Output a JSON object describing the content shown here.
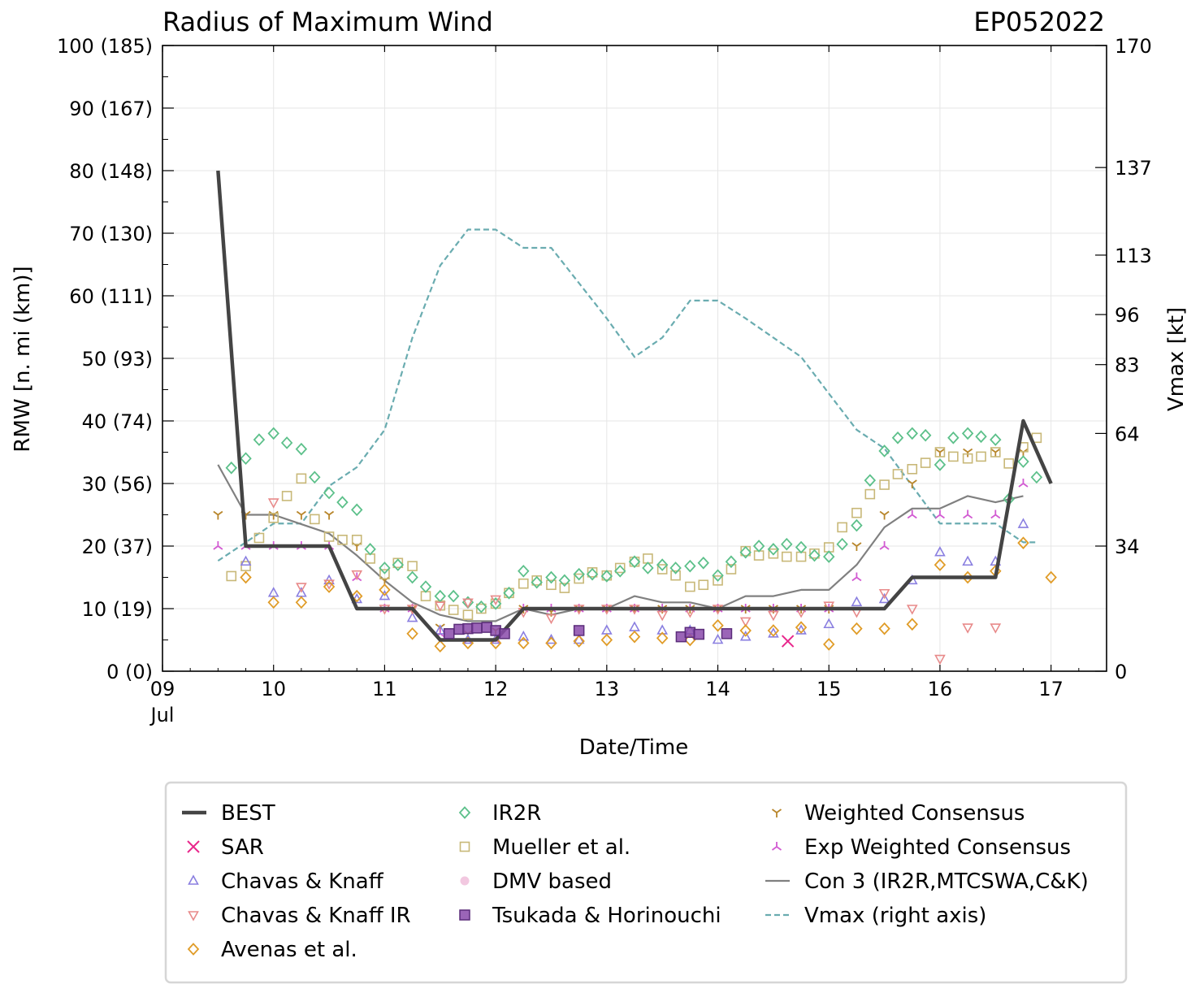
{
  "chart_data": {
    "type": "line",
    "title": "Radius of Maximum Wind",
    "storm_id": "EP052022",
    "xlabel": "Date/Time",
    "ylabel": "RMW [n. mi (km)]",
    "y2label": "Vmax [kt]",
    "xlim": [
      9,
      17.5
    ],
    "ylim": [
      0,
      100
    ],
    "x_ticks": [
      {
        "value": 9,
        "label": "09",
        "sublabel": "Jul"
      },
      {
        "value": 10,
        "label": "10"
      },
      {
        "value": 11,
        "label": "11"
      },
      {
        "value": 12,
        "label": "12"
      },
      {
        "value": 13,
        "label": "13"
      },
      {
        "value": 14,
        "label": "14"
      },
      {
        "value": 15,
        "label": "15"
      },
      {
        "value": 16,
        "label": "16"
      },
      {
        "value": 17,
        "label": "17"
      }
    ],
    "y_ticks": [
      {
        "value": 0,
        "label": "0 (0)"
      },
      {
        "value": 10,
        "label": "10 (19)"
      },
      {
        "value": 20,
        "label": "20 (37)"
      },
      {
        "value": 30,
        "label": "30 (56)"
      },
      {
        "value": 40,
        "label": "40 (74)"
      },
      {
        "value": 50,
        "label": "50 (93)"
      },
      {
        "value": 60,
        "label": "60 (111)"
      },
      {
        "value": 70,
        "label": "70 (130)"
      },
      {
        "value": 80,
        "label": "80 (148)"
      },
      {
        "value": 90,
        "label": "90 (167)"
      },
      {
        "value": 100,
        "label": "100 (185)"
      }
    ],
    "y2_ticks": [
      {
        "value": 0,
        "label": "0"
      },
      {
        "value": 34,
        "label": "34"
      },
      {
        "value": 64,
        "label": "64"
      },
      {
        "value": 83,
        "label": "83"
      },
      {
        "value": 96,
        "label": "96"
      },
      {
        "value": 113,
        "label": "113"
      },
      {
        "value": 137,
        "label": "137"
      },
      {
        "value": 170,
        "label": "170"
      }
    ],
    "y2_mapping": [
      [
        0,
        0
      ],
      [
        34,
        20
      ],
      [
        64,
        38
      ],
      [
        83,
        49
      ],
      [
        96,
        57
      ],
      [
        113,
        66.5
      ],
      [
        137,
        80.5
      ],
      [
        170,
        100
      ]
    ],
    "series": [
      {
        "name": "BEST",
        "type": "line",
        "color": "#444444",
        "x": [
          9.5,
          9.75,
          10.5,
          10.75,
          11.25,
          11.5,
          12.0,
          12.25,
          15.5,
          15.75,
          16.5,
          16.75,
          17.0
        ],
        "y": [
          80,
          20,
          20,
          10,
          10,
          5,
          5,
          10,
          10,
          15,
          15,
          40,
          30
        ]
      },
      {
        "name": "SAR",
        "type": "marker",
        "marker": "x",
        "color": "#e8278c",
        "x": [
          14.63
        ],
        "y": [
          4.8
        ]
      },
      {
        "name": "Chavas & Knaff",
        "type": "marker",
        "marker": "triangle-up",
        "color": "#8a7fe0",
        "x": [
          9.75,
          10.0,
          10.25,
          10.5,
          10.75,
          11.0,
          11.25,
          11.5,
          11.75,
          12.0,
          12.25,
          12.5,
          12.75,
          13.0,
          13.25,
          13.5,
          13.75,
          14.0,
          14.25,
          14.5,
          14.75,
          15.0,
          15.25,
          15.5,
          15.75,
          16.0,
          16.25,
          16.5,
          16.75
        ],
        "y": [
          17.5,
          12.5,
          12.5,
          14.5,
          11.5,
          12,
          8.5,
          6.5,
          5,
          5,
          5.5,
          5,
          5,
          6.5,
          7,
          6.5,
          6.5,
          5,
          5.5,
          6,
          6.5,
          7.5,
          11,
          11.5,
          14.5,
          19,
          17.5,
          17.5,
          23.5
        ]
      },
      {
        "name": "Chavas & Knaff IR",
        "type": "marker",
        "marker": "triangle-down",
        "color": "#e88a8a",
        "x": [
          10.0,
          10.25,
          10.5,
          10.75,
          11.0,
          11.25,
          11.5,
          11.75,
          12.0,
          12.25,
          12.5,
          12.75,
          13.0,
          13.25,
          13.5,
          13.75,
          14.0,
          14.25,
          14.5,
          14.75,
          15.0,
          15.25,
          15.5,
          15.75,
          16.0,
          16.25,
          16.5
        ],
        "y": [
          27,
          13.5,
          14,
          15.5,
          10,
          10,
          10.5,
          11,
          11.5,
          9.5,
          8.5,
          10,
          10,
          10,
          9,
          9.5,
          10,
          8,
          9,
          9.5,
          10.5,
          9.5,
          12.5,
          10,
          2,
          7,
          7
        ]
      },
      {
        "name": "Avenas et al.",
        "type": "marker",
        "marker": "diamond",
        "color": "#e09c28",
        "x": [
          9.75,
          10.0,
          10.25,
          10.5,
          10.75,
          11.0,
          11.25,
          11.5,
          11.75,
          12.0,
          12.25,
          12.5,
          12.75,
          13.0,
          13.25,
          13.5,
          13.75,
          14.0,
          14.25,
          14.5,
          14.75,
          15.0,
          15.25,
          15.5,
          15.75,
          16.0,
          16.25,
          16.5,
          16.75,
          17.0
        ],
        "y": [
          15,
          11,
          11,
          13.5,
          12,
          13,
          6,
          4,
          4.5,
          4.5,
          4.5,
          4.5,
          4.8,
          5,
          5.5,
          5.3,
          5,
          7.3,
          6.5,
          6.5,
          7,
          4.3,
          6.8,
          6.8,
          7.5,
          17,
          15,
          16,
          20.5,
          15
        ]
      },
      {
        "name": "IR2R",
        "type": "marker",
        "marker": "diamond",
        "color": "#5cc08a",
        "x": [
          9.62,
          9.75,
          9.87,
          10.0,
          10.12,
          10.25,
          10.37,
          10.5,
          10.62,
          10.75,
          10.87,
          11.0,
          11.12,
          11.25,
          11.37,
          11.5,
          11.62,
          11.75,
          11.87,
          12.0,
          12.12,
          12.25,
          12.37,
          12.5,
          12.62,
          12.75,
          12.87,
          13.0,
          13.12,
          13.25,
          13.37,
          13.5,
          13.62,
          13.75,
          13.87,
          14.0,
          14.12,
          14.25,
          14.37,
          14.5,
          14.62,
          14.75,
          14.87,
          15.0,
          15.12,
          15.25,
          15.37,
          15.5,
          15.62,
          15.75,
          15.87,
          16.0,
          16.12,
          16.25,
          16.37,
          16.5,
          16.62,
          16.75,
          16.87
        ],
        "y": [
          32.5,
          34,
          37,
          38,
          36.5,
          35.5,
          31,
          28.5,
          27,
          25.8,
          19.5,
          16.5,
          17,
          15,
          13.5,
          12,
          12,
          11,
          10.3,
          10.8,
          12.5,
          16,
          14.2,
          15,
          14.5,
          15.5,
          15.5,
          15.2,
          16,
          17.5,
          16.5,
          17,
          16.5,
          16.8,
          17.3,
          15.3,
          17.5,
          19,
          20,
          19.5,
          20.3,
          19.8,
          18.5,
          18.3,
          20.3,
          23.3,
          30.5,
          35.2,
          37.3,
          38,
          37.7,
          33,
          37.3,
          38,
          37.5,
          37,
          27.5,
          33.5,
          31
        ]
      },
      {
        "name": "Mueller et al.",
        "type": "marker",
        "marker": "square",
        "color": "#c8b878",
        "x": [
          9.62,
          9.75,
          9.87,
          10.0,
          10.12,
          10.25,
          10.37,
          10.5,
          10.62,
          10.75,
          10.87,
          11.0,
          11.12,
          11.25,
          11.37,
          11.5,
          11.62,
          11.75,
          11.87,
          12.0,
          12.12,
          12.25,
          12.37,
          12.5,
          12.62,
          12.75,
          12.87,
          13.0,
          13.12,
          13.25,
          13.37,
          13.5,
          13.62,
          13.75,
          13.87,
          14.0,
          14.12,
          14.25,
          14.37,
          14.5,
          14.62,
          14.75,
          14.87,
          15.0,
          15.12,
          15.25,
          15.37,
          15.5,
          15.62,
          15.75,
          15.87,
          16.0,
          16.12,
          16.25,
          16.37,
          16.5,
          16.62,
          16.75,
          16.87
        ],
        "y": [
          15.2,
          16.8,
          21.3,
          24.5,
          28,
          30.8,
          24.3,
          21.5,
          21,
          21,
          18,
          15.5,
          17.3,
          16.8,
          12,
          10.5,
          9.8,
          9,
          10,
          10.8,
          12.5,
          14,
          14.5,
          13.8,
          13.3,
          14.8,
          15.8,
          15.3,
          16.5,
          17.5,
          18,
          16.3,
          15.3,
          13.5,
          13.8,
          14.5,
          16.3,
          19.2,
          18.5,
          18.8,
          18.3,
          18.3,
          18.8,
          19.8,
          23,
          25.3,
          28.3,
          29.8,
          31.5,
          32.3,
          33.3,
          35,
          34.3,
          34,
          34.3,
          35,
          33.2,
          35.8,
          37.3
        ]
      },
      {
        "name": "DMV based",
        "type": "marker",
        "marker": "circle",
        "color": "#f2c8e0",
        "x": [],
        "y": []
      },
      {
        "name": "Tsukada & Horinouchi",
        "type": "marker",
        "marker": "square-filled",
        "color": "#8a4aaa",
        "x": [
          11.58,
          11.67,
          11.75,
          11.83,
          11.92,
          12.0,
          12.08,
          12.75,
          13.67,
          13.75,
          13.83,
          14.08
        ],
        "y": [
          6,
          6.7,
          6.8,
          6.9,
          7,
          6.5,
          6,
          6.5,
          5.5,
          6.2,
          5.9,
          6
        ]
      },
      {
        "name": "Weighted Consensus",
        "type": "marker",
        "marker": "tri-down",
        "color": "#b8862b",
        "x": [
          9.5,
          9.75,
          10.0,
          10.25,
          10.5,
          10.75,
          11.0,
          11.25,
          11.5,
          11.75,
          12.0,
          12.25,
          12.5,
          12.75,
          13.0,
          13.25,
          13.5,
          13.75,
          14.0,
          14.25,
          14.5,
          14.75,
          15.0,
          15.25,
          15.5,
          15.75,
          16.0,
          16.25,
          16.5,
          16.75
        ],
        "y": [
          25,
          25,
          25,
          25,
          25,
          20,
          14.5,
          10,
          7,
          6,
          6.5,
          10,
          9.5,
          10,
          10,
          10,
          10,
          10,
          10,
          10,
          10,
          10,
          10,
          20,
          25,
          30,
          35,
          35,
          35,
          35
        ]
      },
      {
        "name": "Exp Weighted Consensus",
        "type": "marker",
        "marker": "tri-up",
        "color": "#d25ad2",
        "x": [
          9.5,
          9.75,
          10.0,
          10.25,
          10.5,
          10.75,
          11.0,
          11.25,
          11.5,
          11.75,
          12.0,
          12.25,
          12.5,
          12.75,
          13.0,
          13.25,
          13.5,
          13.75,
          14.0,
          14.25,
          14.5,
          14.75,
          15.0,
          15.25,
          15.5,
          15.75,
          16.0,
          16.25,
          16.5,
          16.75
        ],
        "y": [
          20,
          20,
          20,
          20,
          20,
          15,
          10,
          10,
          6,
          5,
          5,
          10,
          10,
          10,
          10,
          10,
          10,
          10,
          10,
          10,
          10,
          10,
          10,
          15,
          20,
          25,
          25,
          25,
          25,
          30
        ]
      },
      {
        "name": "Con 3 (IR2R,MTCSWA,C&K)",
        "type": "line",
        "color": "#808080",
        "x": [
          9.5,
          9.75,
          10.0,
          10.25,
          10.5,
          10.75,
          11.0,
          11.25,
          11.5,
          11.75,
          12.0,
          12.25,
          12.5,
          12.75,
          13.0,
          13.25,
          13.5,
          13.75,
          14.0,
          14.25,
          14.5,
          14.75,
          15.0,
          15.25,
          15.5,
          15.75,
          16.0,
          16.25,
          16.5,
          16.75
        ],
        "y": [
          33,
          25,
          25,
          23.5,
          22,
          18.5,
          14.5,
          11,
          9,
          8,
          8,
          10,
          9,
          10,
          10,
          12,
          11,
          11,
          10,
          12,
          12,
          13,
          13,
          17,
          23,
          26,
          26,
          28,
          27,
          28
        ]
      },
      {
        "name": "Vmax (right axis)",
        "type": "line",
        "dash": true,
        "axis": "right",
        "color": "#6aacb0",
        "x": [
          9.5,
          9.75,
          10.0,
          10.25,
          10.5,
          10.75,
          11.0,
          11.25,
          11.5,
          11.75,
          12.0,
          12.25,
          12.5,
          12.75,
          13.0,
          13.25,
          13.5,
          13.75,
          14.0,
          14.25,
          14.5,
          14.75,
          15.0,
          15.25,
          15.5,
          15.75,
          16.0,
          16.25,
          16.5,
          16.75,
          16.87
        ],
        "y": [
          30,
          35,
          40,
          40,
          50,
          55,
          65,
          90,
          110,
          120,
          120,
          115,
          115,
          105,
          95,
          85,
          90,
          100,
          100,
          95,
          90,
          85,
          75,
          65,
          60,
          50,
          40,
          40,
          40,
          35,
          35
        ]
      }
    ]
  },
  "legend": {
    "items": [
      "BEST",
      "SAR",
      "Chavas & Knaff",
      "Chavas & Knaff IR",
      "Avenas et al.",
      "IR2R",
      "Mueller et al.",
      "DMV based",
      "Tsukada & Horinouchi",
      "Weighted Consensus",
      "Exp Weighted Consensus",
      "Con 3 (IR2R,MTCSWA,C&K)",
      "Vmax (right axis)"
    ]
  }
}
